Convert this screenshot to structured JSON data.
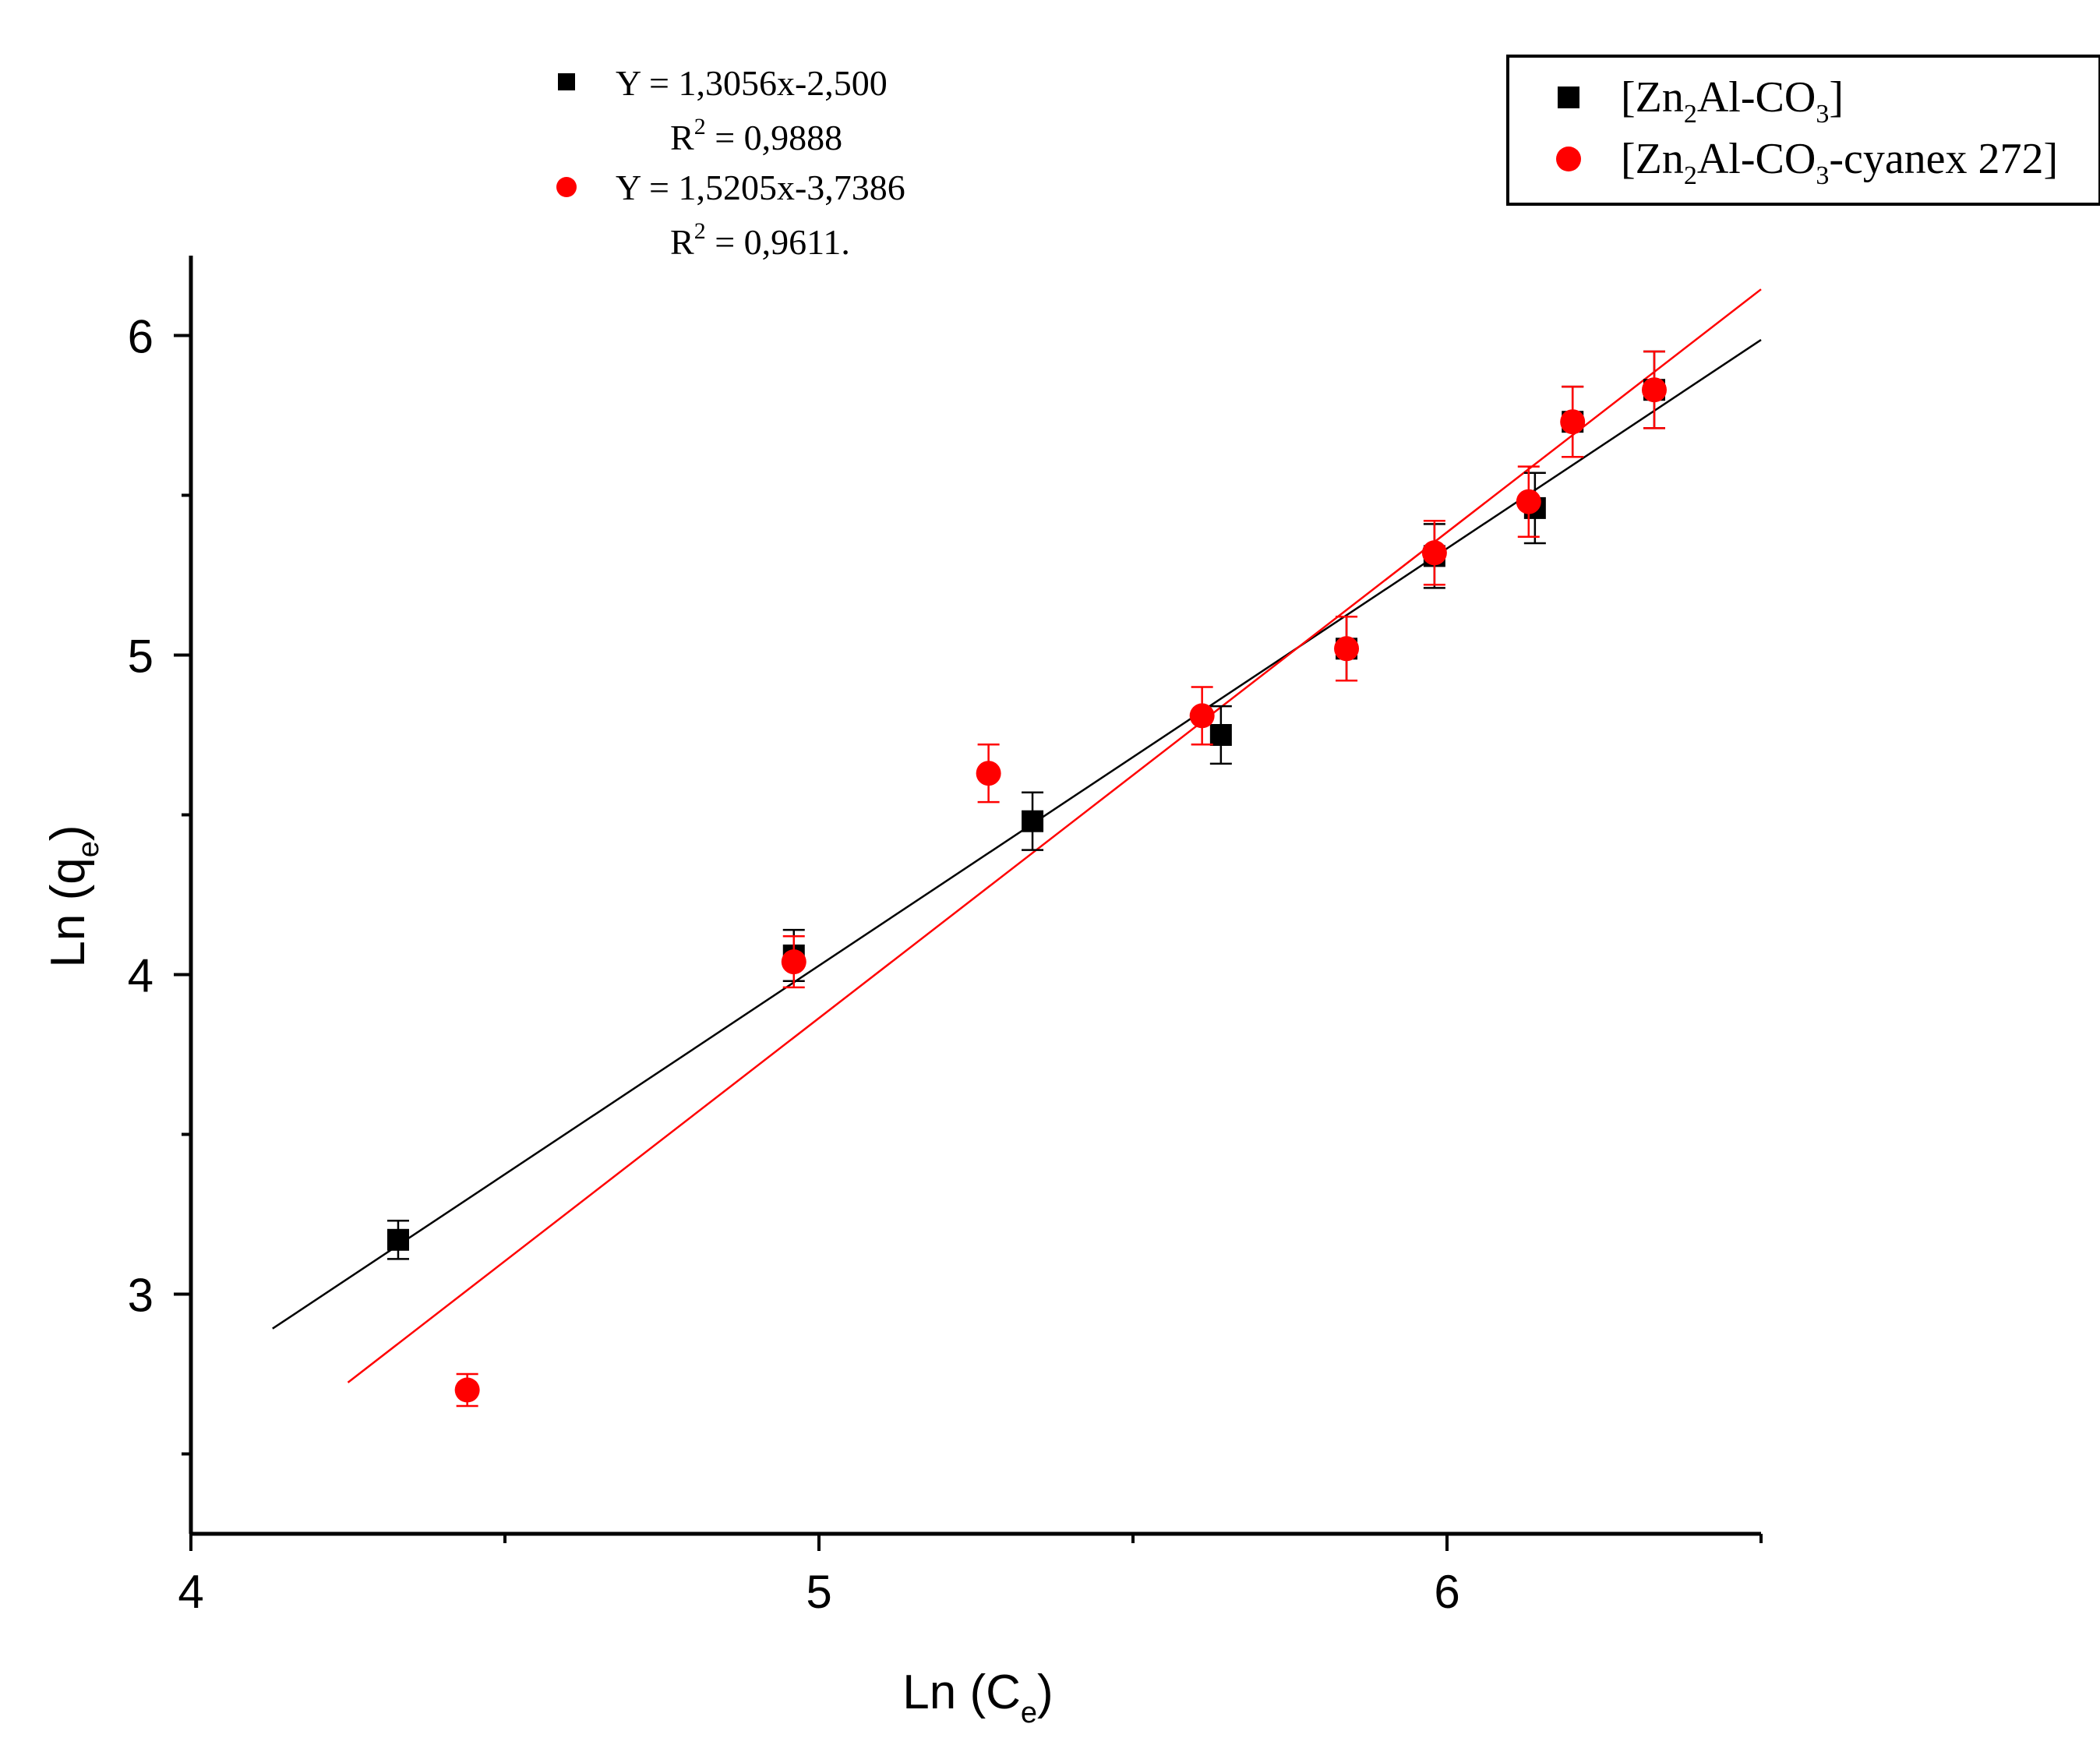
{
  "chart_data": {
    "type": "scatter",
    "title": "",
    "xlabel": {
      "main": "Ln (C",
      "sub": "e",
      "close": ")"
    },
    "ylabel": {
      "main": "Ln (q",
      "sub": "e",
      "close": ")"
    },
    "xlim": [
      4,
      6.5
    ],
    "ylim": [
      2.25,
      6.25
    ],
    "x_ticks": [
      4,
      5,
      6
    ],
    "y_ticks": [
      3,
      4,
      5,
      6
    ],
    "x_ticks_minor": [
      4.5,
      5.5,
      6.5
    ],
    "y_ticks_minor": [
      2.5,
      3.5,
      4.5,
      5.5
    ],
    "grid": false,
    "legend_position": "top-right",
    "series": [
      {
        "name": "[Zn2Al-CO3]",
        "legend_parts": [
          "[Zn",
          "2",
          "Al-CO",
          "3",
          "]"
        ],
        "marker": "square",
        "color": "#000000",
        "points": [
          {
            "x": 4.33,
            "y": 3.17,
            "err": 0.06
          },
          {
            "x": 4.96,
            "y": 4.06,
            "err": 0.08
          },
          {
            "x": 5.34,
            "y": 4.48,
            "err": 0.09
          },
          {
            "x": 5.64,
            "y": 4.75,
            "err": 0.09
          },
          {
            "x": 5.84,
            "y": 5.02,
            "err": 0.1
          },
          {
            "x": 5.98,
            "y": 5.31,
            "err": 0.1
          },
          {
            "x": 6.14,
            "y": 5.46,
            "err": 0.11
          },
          {
            "x": 6.2,
            "y": 5.73,
            "err": 0.11
          },
          {
            "x": 6.33,
            "y": 5.83,
            "err": 0.12
          }
        ],
        "fit": {
          "slope": 1.3056,
          "intercept": -2.5,
          "x_range": [
            4.13,
            6.5
          ]
        },
        "equation": "Y = 1,3056x-2,500",
        "r2_value": "= 0,9888"
      },
      {
        "name": "[Zn2Al-CO3-cyanex 272]",
        "legend_parts": [
          "[Zn",
          "2",
          "Al-CO",
          "3",
          "-cyanex 272]"
        ],
        "marker": "circle",
        "color": "#ff0000",
        "points": [
          {
            "x": 4.44,
            "y": 2.7,
            "err": 0.05
          },
          {
            "x": 4.96,
            "y": 4.04,
            "err": 0.08
          },
          {
            "x": 5.27,
            "y": 4.63,
            "err": 0.09
          },
          {
            "x": 5.61,
            "y": 4.81,
            "err": 0.09
          },
          {
            "x": 5.84,
            "y": 5.02,
            "err": 0.1
          },
          {
            "x": 5.98,
            "y": 5.32,
            "err": 0.1
          },
          {
            "x": 6.13,
            "y": 5.48,
            "err": 0.11
          },
          {
            "x": 6.2,
            "y": 5.73,
            "err": 0.11
          },
          {
            "x": 6.33,
            "y": 5.83,
            "err": 0.12
          }
        ],
        "fit": {
          "slope": 1.5205,
          "intercept": -3.7386,
          "x_range": [
            4.25,
            6.5
          ]
        },
        "equation": "Y = 1,5205x-3,7386",
        "r2_value": "= 0,9611."
      }
    ],
    "r2_label": "R",
    "r2_sup": "2"
  }
}
